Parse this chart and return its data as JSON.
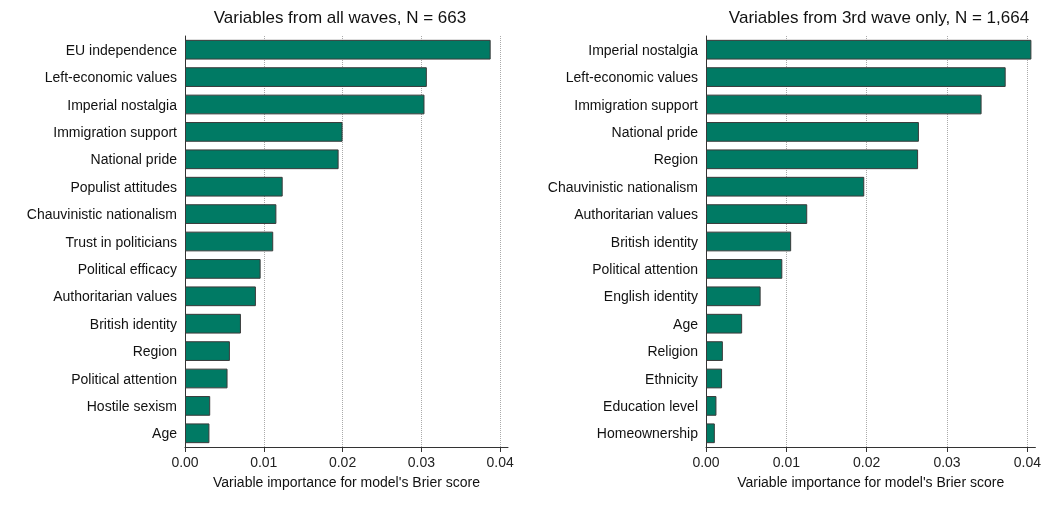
{
  "chart_data": [
    {
      "type": "bar",
      "orientation": "horizontal",
      "title": "Variables from all waves, N = 663",
      "xlabel": "Variable importance for model's Brier score",
      "categories": [
        "EU independence",
        "Left-economic values",
        "Imperial nostalgia",
        "Immigration support",
        "National pride",
        "Populist attitudes",
        "Chauvinistic nationalism",
        "Trust in politicians",
        "Political efficacy",
        "Authoritarian values",
        "British identity",
        "Region",
        "Political attention",
        "Hostile sexism",
        "Age"
      ],
      "values": [
        0.0388,
        0.0307,
        0.0304,
        0.02,
        0.0195,
        0.0124,
        0.0116,
        0.0112,
        0.0096,
        0.009,
        0.0071,
        0.0057,
        0.0054,
        0.0032,
        0.0031
      ],
      "color": "#007a64",
      "xlim": [
        0,
        0.041
      ],
      "xticks": [
        {
          "value": 0,
          "label": "0.00"
        },
        0.01,
        0.02,
        0.03,
        0.04
      ],
      "grid": "x"
    },
    {
      "type": "bar",
      "orientation": "horizontal",
      "title": "Variables from 3rd wave only, N = 1,664",
      "xlabel": "Variable importance for model's Brier score",
      "categories": [
        "Imperial nostalgia",
        "Left-economic values",
        "Immigration support",
        "National pride",
        "Region",
        "Chauvinistic nationalism",
        "Authoritarian values",
        "British identity",
        "Political attention",
        "English identity",
        "Age",
        "Religion",
        "Ethnicity",
        "Education level",
        "Homeownership"
      ],
      "values": [
        0.0405,
        0.0373,
        0.0343,
        0.0265,
        0.0264,
        0.0197,
        0.0126,
        0.0106,
        0.0095,
        0.0068,
        0.0045,
        0.0021,
        0.002,
        0.0013,
        0.0011
      ],
      "color": "#007a64",
      "xlim": [
        0,
        0.041
      ],
      "xticks": [
        {
          "value": 0,
          "label": "0.00"
        },
        0.01,
        0.02,
        0.03,
        0.04
      ],
      "grid": "x"
    }
  ]
}
